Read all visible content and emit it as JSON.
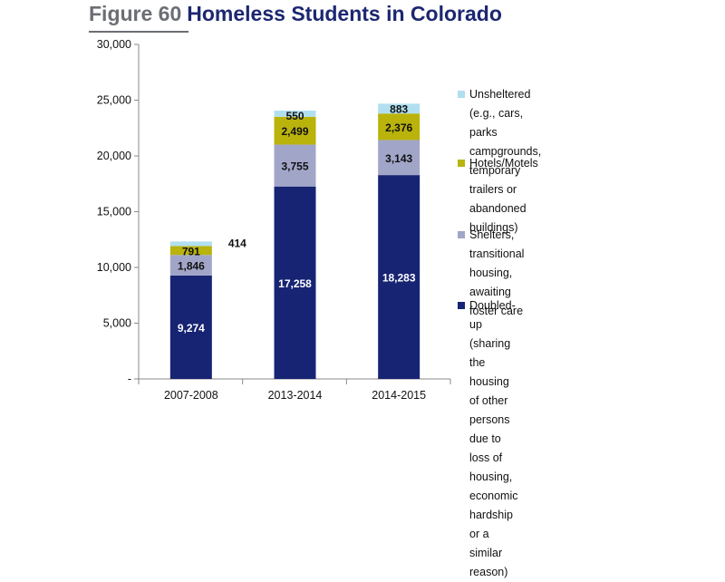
{
  "header": {
    "figure_label": "Figure 60",
    "title": "Homeless Students in Colorado"
  },
  "colors": {
    "doubled_up": "#172473",
    "shelters": "#a1a6c9",
    "hotels": "#b9b30c",
    "unsheltered": "#b1dff0",
    "axis": "#8a8a8a",
    "text": "#111111"
  },
  "chart_data": {
    "type": "bar",
    "stacked": true,
    "title": "Homeless Students in Colorado",
    "xlabel": "",
    "ylabel": "",
    "ylim": [
      0,
      30000
    ],
    "y_ticks": [
      0,
      5000,
      10000,
      15000,
      20000,
      25000,
      30000
    ],
    "y_tick_labels": [
      "-",
      "5,000",
      "10,000",
      "15,000",
      "20,000",
      "25,000",
      "30,000"
    ],
    "categories": [
      "2007-2008",
      "2013-2014",
      "2014-2015"
    ],
    "grid": false,
    "legend_position": "right",
    "series": [
      {
        "name": "Doubled-up (sharing the housing of other persons due to loss of housing, economic hardship or a similar reason)",
        "color": "#172473",
        "values": [
          9274,
          17258,
          18283
        ],
        "labels": [
          "9,274",
          "17,258",
          "18,283"
        ]
      },
      {
        "name": "Shelters, transitional housing, awaiting foster care",
        "color": "#a1a6c9",
        "values": [
          1846,
          3755,
          3143
        ],
        "labels": [
          "1,846",
          "3,755",
          "3,143"
        ]
      },
      {
        "name": "Hotels/Motels",
        "color": "#b9b30c",
        "values": [
          791,
          2499,
          2376
        ],
        "labels": [
          "791",
          "2,499",
          "2,376"
        ]
      },
      {
        "name": "Unsheltered (e.g., cars, parks campgrounds, temporary trailers or abandoned buildings)",
        "color": "#b1dff0",
        "values": [
          414,
          550,
          883
        ],
        "labels": [
          "414",
          "550",
          "883"
        ]
      }
    ]
  }
}
